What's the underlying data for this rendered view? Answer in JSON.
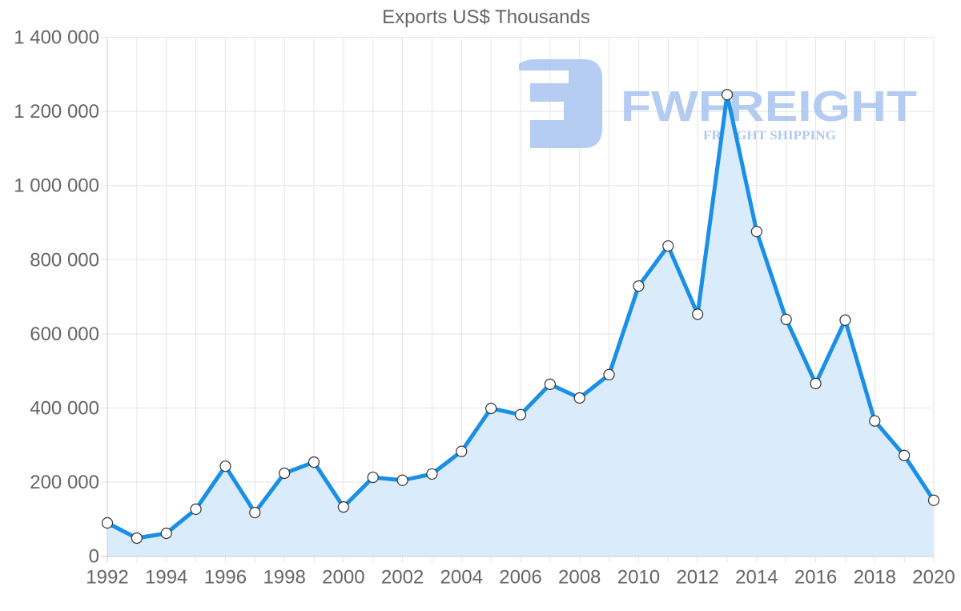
{
  "chart_data": {
    "type": "area",
    "title": "Exports US$ Thousands",
    "xlabel": "",
    "ylabel": "",
    "categories": [
      1992,
      1993,
      1994,
      1995,
      1996,
      1997,
      1998,
      1999,
      2000,
      2001,
      2002,
      2003,
      2004,
      2005,
      2006,
      2007,
      2008,
      2009,
      2010,
      2011,
      2012,
      2013,
      2014,
      2015,
      2016,
      2017,
      2018,
      2019,
      2020
    ],
    "series": [
      {
        "name": "Exports US$ Thousands",
        "values": [
          90000,
          49000,
          62000,
          127000,
          243000,
          118000,
          224000,
          254000,
          133000,
          213000,
          205000,
          222000,
          283000,
          399000,
          382000,
          464000,
          427000,
          490000,
          729000,
          837000,
          653000,
          1245000,
          876000,
          639000,
          466000,
          637000,
          365000,
          272000,
          151000
        ]
      }
    ],
    "ylim": [
      0,
      1400000
    ],
    "yticks": [
      0,
      200000,
      400000,
      600000,
      800000,
      1000000,
      1200000,
      1400000
    ],
    "ytick_labels": [
      "0",
      "200 000",
      "400 000",
      "600 000",
      "800 000",
      "1 000 000",
      "1 200 000",
      "1 400 000"
    ],
    "xticks": [
      1992,
      1994,
      1996,
      1998,
      2000,
      2002,
      2004,
      2006,
      2008,
      2010,
      2012,
      2014,
      2016,
      2018,
      2020
    ],
    "xtick_labels": [
      "1992",
      "1994",
      "1996",
      "1998",
      "2000",
      "2002",
      "2004",
      "2006",
      "2008",
      "2010",
      "2012",
      "2014",
      "2016",
      "2018",
      "2020"
    ],
    "grid": true,
    "legend": null,
    "colors": {
      "line": "#1a8fe8",
      "fill": "#d8ebfb",
      "marker_fill": "#ffffff",
      "marker_stroke": "#333333"
    }
  },
  "watermark": {
    "brand": "FWFREIGHT",
    "tagline": "FREIGHT SHIPPING",
    "color": "#a8c4f0"
  }
}
